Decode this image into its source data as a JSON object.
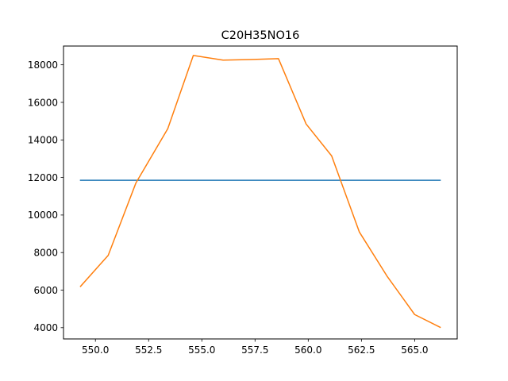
{
  "chart_data": {
    "type": "line",
    "title": "C20H35NO16",
    "xlabel": "",
    "ylabel": "",
    "xlim": [
      548.5,
      567.0
    ],
    "ylim": [
      3400,
      19000
    ],
    "xticks": [
      550.0,
      552.5,
      555.0,
      557.5,
      560.0,
      562.5,
      565.0
    ],
    "xtick_labels": [
      "550.0",
      "552.5",
      "555.0",
      "557.5",
      "560.0",
      "562.5",
      "565.0"
    ],
    "yticks": [
      4000,
      6000,
      8000,
      10000,
      12000,
      14000,
      16000,
      18000
    ],
    "ytick_labels": [
      "4000",
      "6000",
      "8000",
      "10000",
      "12000",
      "14000",
      "16000",
      "18000"
    ],
    "grid": false,
    "series": [
      {
        "color": "#1f77b4",
        "x": [
          549.3,
          566.2
        ],
        "y": [
          11850,
          11850
        ]
      },
      {
        "color": "#ff7f0e",
        "x": [
          549.3,
          550.6,
          551.9,
          553.4,
          554.6,
          556.0,
          557.3,
          558.6,
          559.9,
          561.1,
          562.4,
          563.7,
          565.0,
          566.2
        ],
        "y": [
          6200,
          7850,
          11700,
          14600,
          18500,
          18250,
          18280,
          18330,
          14850,
          13150,
          9100,
          6750,
          4700,
          4020
        ]
      }
    ]
  }
}
